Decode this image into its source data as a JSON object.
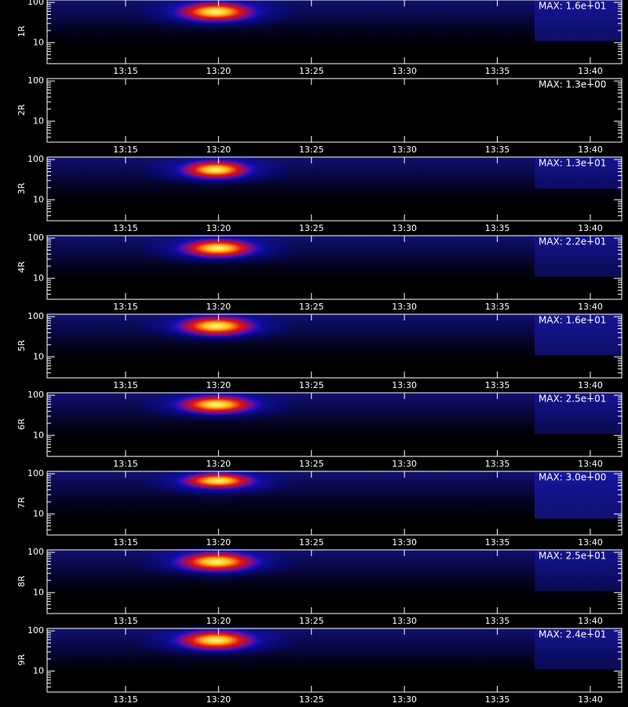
{
  "chart_data": [
    {
      "type": "spectrogram",
      "ylabel": "1R",
      "annotation": "MAX: 1.6e+01",
      "log_y": true,
      "ylim": [
        3,
        115
      ],
      "yticks": [
        10,
        100
      ],
      "xlim": [
        10.78,
        41.69
      ],
      "xticks": [
        {
          "value": 15,
          "label": "13:15"
        },
        {
          "value": 20,
          "label": "13:20"
        },
        {
          "value": 25,
          "label": "13:25"
        },
        {
          "value": 30,
          "label": "13:30"
        },
        {
          "value": 35,
          "label": "13:35"
        },
        {
          "value": 40,
          "label": "13:40"
        }
      ]
    },
    {
      "type": "spectrogram",
      "ylabel": "2R",
      "annotation": "MAX: 1.3e+00",
      "log_y": true,
      "ylim": [
        3,
        115
      ],
      "yticks": [
        10,
        100
      ],
      "xlim": [
        10.78,
        41.69
      ],
      "xticks": [
        {
          "value": 15,
          "label": "13:15"
        },
        {
          "value": 20,
          "label": "13:20"
        },
        {
          "value": 25,
          "label": "13:25"
        },
        {
          "value": 30,
          "label": "13:30"
        },
        {
          "value": 35,
          "label": "13:35"
        },
        {
          "value": 40,
          "label": "13:40"
        }
      ]
    },
    {
      "type": "spectrogram",
      "ylabel": "3R",
      "annotation": "MAX: 1.3e+01",
      "log_y": true,
      "ylim": [
        3,
        115
      ],
      "yticks": [
        10,
        100
      ],
      "xlim": [
        10.78,
        41.69
      ],
      "xticks": [
        {
          "value": 15,
          "label": "13:15"
        },
        {
          "value": 20,
          "label": "13:20"
        },
        {
          "value": 25,
          "label": "13:25"
        },
        {
          "value": 30,
          "label": "13:30"
        },
        {
          "value": 35,
          "label": "13:35"
        },
        {
          "value": 40,
          "label": "13:40"
        }
      ]
    },
    {
      "type": "spectrogram",
      "ylabel": "4R",
      "annotation": "MAX: 2.2e+01",
      "log_y": true,
      "ylim": [
        3,
        115
      ],
      "yticks": [
        10,
        100
      ],
      "xlim": [
        10.78,
        41.69
      ],
      "xticks": [
        {
          "value": 15,
          "label": "13:15"
        },
        {
          "value": 20,
          "label": "13:20"
        },
        {
          "value": 25,
          "label": "13:25"
        },
        {
          "value": 30,
          "label": "13:30"
        },
        {
          "value": 35,
          "label": "13:35"
        },
        {
          "value": 40,
          "label": "13:40"
        }
      ]
    },
    {
      "type": "spectrogram",
      "ylabel": "5R",
      "annotation": "MAX: 1.6e+01",
      "log_y": true,
      "ylim": [
        3,
        115
      ],
      "yticks": [
        10,
        100
      ],
      "xlim": [
        10.78,
        41.69
      ],
      "xticks": [
        {
          "value": 15,
          "label": "13:15"
        },
        {
          "value": 20,
          "label": "13:20"
        },
        {
          "value": 25,
          "label": "13:25"
        },
        {
          "value": 30,
          "label": "13:30"
        },
        {
          "value": 35,
          "label": "13:35"
        },
        {
          "value": 40,
          "label": "13:40"
        }
      ]
    },
    {
      "type": "spectrogram",
      "ylabel": "6R",
      "annotation": "MAX: 2.5e+01",
      "log_y": true,
      "ylim": [
        3,
        115
      ],
      "yticks": [
        10,
        100
      ],
      "xlim": [
        10.78,
        41.69
      ],
      "xticks": [
        {
          "value": 15,
          "label": "13:15"
        },
        {
          "value": 20,
          "label": "13:20"
        },
        {
          "value": 25,
          "label": "13:25"
        },
        {
          "value": 30,
          "label": "13:30"
        },
        {
          "value": 35,
          "label": "13:35"
        },
        {
          "value": 40,
          "label": "13:40"
        }
      ]
    },
    {
      "type": "spectrogram",
      "ylabel": "7R",
      "annotation": "MAX: 3.0e+00",
      "log_y": true,
      "ylim": [
        3,
        115
      ],
      "yticks": [
        10,
        100
      ],
      "xlim": [
        10.78,
        41.69
      ],
      "xticks": [
        {
          "value": 15,
          "label": "13:15"
        },
        {
          "value": 20,
          "label": "13:20"
        },
        {
          "value": 25,
          "label": "13:25"
        },
        {
          "value": 30,
          "label": "13:30"
        },
        {
          "value": 35,
          "label": "13:35"
        },
        {
          "value": 40,
          "label": "13:40"
        }
      ]
    },
    {
      "type": "spectrogram",
      "ylabel": "8R",
      "annotation": "MAX: 2.5e+01",
      "log_y": true,
      "ylim": [
        3,
        115
      ],
      "yticks": [
        10,
        100
      ],
      "xlim": [
        10.78,
        41.69
      ],
      "xticks": [
        {
          "value": 15,
          "label": "13:15"
        },
        {
          "value": 20,
          "label": "13:20"
        },
        {
          "value": 25,
          "label": "13:25"
        },
        {
          "value": 30,
          "label": "13:30"
        },
        {
          "value": 35,
          "label": "13:35"
        },
        {
          "value": 40,
          "label": "13:40"
        }
      ]
    },
    {
      "type": "spectrogram",
      "ylabel": "9R",
      "annotation": "MAX: 2.4e+01",
      "log_y": true,
      "ylim": [
        3,
        115
      ],
      "yticks": [
        10,
        100
      ],
      "xlim": [
        10.78,
        41.69
      ],
      "xticks": [
        {
          "value": 15,
          "label": "13:15"
        },
        {
          "value": 20,
          "label": "13:20"
        },
        {
          "value": 25,
          "label": "13:25"
        },
        {
          "value": 30,
          "label": "13:30"
        },
        {
          "value": 35,
          "label": "13:35"
        },
        {
          "value": 40,
          "label": "13:40"
        }
      ]
    }
  ]
}
